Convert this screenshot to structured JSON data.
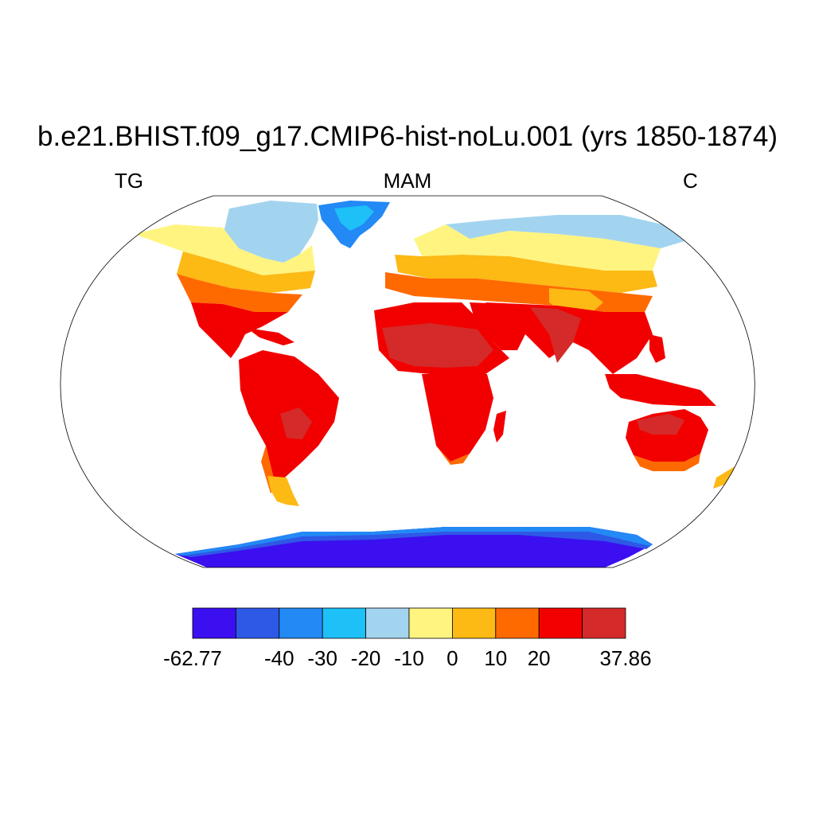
{
  "title": "b.e21.BHIST.f09_g17.CMIP6-hist-noLu.001 (yrs 1850-1874)",
  "left_label": "TG",
  "center_label": "MAM",
  "right_label": "C",
  "colorbar": {
    "colors": [
      "#3b0ff0",
      "#2e58e6",
      "#2289f5",
      "#1ec0f8",
      "#a3d4ef",
      "#fff480",
      "#fdb914",
      "#ff6a00",
      "#f20000",
      "#d42a2a"
    ],
    "labels": [
      "-62.77",
      "-40",
      "-30",
      "-20",
      "-10",
      "0",
      "10",
      "20",
      "37.86"
    ]
  }
}
